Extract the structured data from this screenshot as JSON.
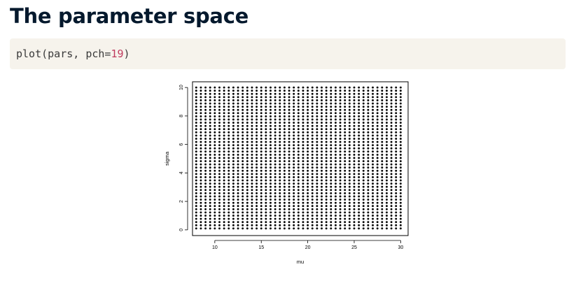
{
  "slide": {
    "title": "The parameter space"
  },
  "code": {
    "func": "plot(",
    "args_before": "pars, pch=",
    "number": "19",
    "close": ")"
  },
  "chart_data": {
    "type": "scatter",
    "xlabel": "mu",
    "ylabel": "sigma",
    "xlim": [
      7.6,
      30.8
    ],
    "ylim": [
      -0.4,
      10.4
    ],
    "x_ticks": [
      "10",
      "15",
      "20",
      "25",
      "30"
    ],
    "y_ticks": [
      "0",
      "2",
      "4",
      "6",
      "8",
      "10"
    ],
    "x": {
      "from": 8,
      "to": 30,
      "length": 45
    },
    "y": {
      "from": 0.1,
      "to": 10,
      "length": 45
    },
    "point_symbol": "filled-circle",
    "point_color": "#000000",
    "grid": false,
    "box": true
  }
}
